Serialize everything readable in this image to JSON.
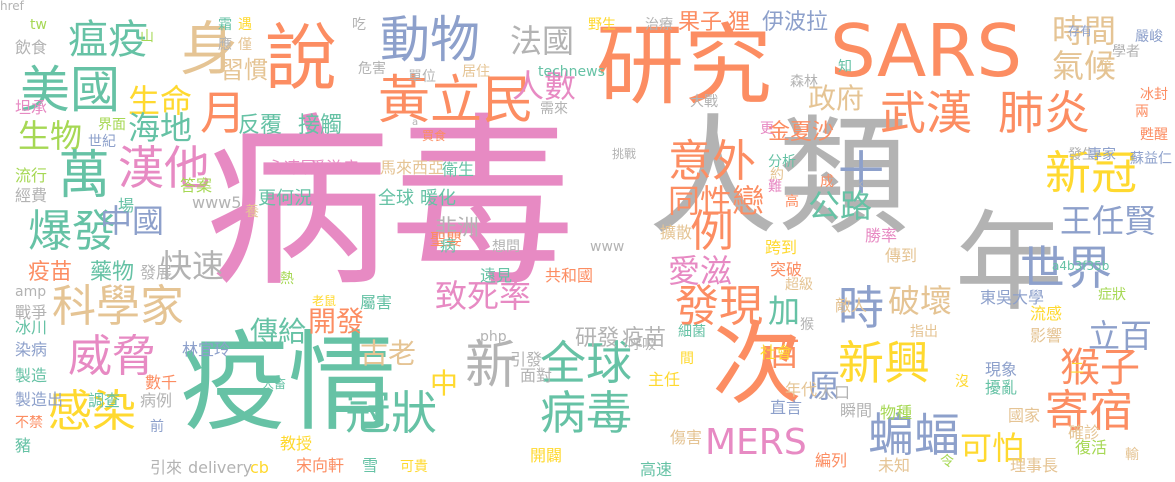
{
  "palette": {
    "pink": "#e78ac3",
    "gray": "#b3b3b3",
    "orange": "#fc8d62",
    "green": "#66c2a5",
    "blue": "#8da0cb",
    "lime": "#a6d854",
    "yellow": "#ffd92f",
    "tan": "#e5c494"
  },
  "words": [
    {
      "t": "病毒",
      "c": "pink"
    },
    {
      "t": "人類",
      "c": "gray"
    },
    {
      "t": "年",
      "c": "gray"
    },
    {
      "t": "疫情",
      "c": "green"
    },
    {
      "t": "研究",
      "c": "orange"
    },
    {
      "t": "SARS",
      "c": "orange"
    },
    {
      "t": "次",
      "c": "orange"
    },
    {
      "t": "說",
      "c": "orange"
    },
    {
      "t": "動物",
      "c": "blue"
    },
    {
      "t": "法國",
      "c": "gray"
    },
    {
      "t": "身",
      "c": "tan"
    },
    {
      "t": "瘟疫",
      "c": "green"
    },
    {
      "t": "美國",
      "c": "green"
    },
    {
      "t": "時間",
      "c": "tan"
    },
    {
      "t": "氣候",
      "c": "tan"
    },
    {
      "t": "黃立民",
      "c": "orange"
    },
    {
      "t": "人數",
      "c": "pink"
    },
    {
      "t": "政府",
      "c": "tan"
    },
    {
      "t": "武漢",
      "c": "orange"
    },
    {
      "t": "肺炎",
      "c": "orange"
    },
    {
      "t": "月",
      "c": "orange"
    },
    {
      "t": "生命",
      "c": "yellow"
    },
    {
      "t": "生物",
      "c": "lime"
    },
    {
      "t": "海地",
      "c": "green"
    },
    {
      "t": "漢他",
      "c": "pink"
    },
    {
      "t": "萬",
      "c": "green"
    },
    {
      "t": "意外",
      "c": "orange"
    },
    {
      "t": "新冠",
      "c": "yellow"
    },
    {
      "t": "爆發",
      "c": "green"
    },
    {
      "t": "中國",
      "c": "blue"
    },
    {
      "t": "科學家",
      "c": "tan"
    },
    {
      "t": "快速",
      "c": "gray"
    },
    {
      "t": "十",
      "c": "blue"
    },
    {
      "t": "公路",
      "c": "green"
    },
    {
      "t": "同性戀",
      "c": "orange"
    },
    {
      "t": "例",
      "c": "orange"
    },
    {
      "t": "世界",
      "c": "blue"
    },
    {
      "t": "王任賢",
      "c": "blue"
    },
    {
      "t": "威脅",
      "c": "pink"
    },
    {
      "t": "全球",
      "c": "green"
    },
    {
      "t": "致死率",
      "c": "pink"
    },
    {
      "t": "發現",
      "c": "orange"
    },
    {
      "t": "時",
      "c": "blue"
    },
    {
      "t": "破壞",
      "c": "tan"
    },
    {
      "t": "立百",
      "c": "blue"
    },
    {
      "t": "猴子",
      "c": "orange"
    },
    {
      "t": "新興",
      "c": "yellow"
    },
    {
      "t": "愛滋",
      "c": "pink"
    },
    {
      "t": "新",
      "c": "gray"
    },
    {
      "t": "冠狀",
      "c": "green"
    },
    {
      "t": "病毒",
      "c": "green"
    },
    {
      "t": "感染",
      "c": "yellow"
    },
    {
      "t": "MERS",
      "c": "pink"
    },
    {
      "t": "寄宿",
      "c": "orange"
    },
    {
      "t": "蝙蝠",
      "c": "blue"
    },
    {
      "t": "可怕",
      "c": "yellow"
    },
    {
      "t": "傳給",
      "c": "green"
    },
    {
      "t": "開發",
      "c": "orange"
    },
    {
      "t": "古老",
      "c": "tan"
    },
    {
      "t": "中",
      "c": "yellow"
    },
    {
      "t": "原",
      "c": "blue"
    },
    {
      "t": "百",
      "c": "orange"
    },
    {
      "t": "加",
      "c": "green"
    },
    {
      "t": "伊波拉",
      "c": "blue"
    },
    {
      "t": "果子",
      "c": "orange"
    },
    {
      "t": "狸",
      "c": "orange"
    },
    {
      "t": "金夏沙",
      "c": "orange"
    },
    {
      "t": "疫苗",
      "c": "orange"
    },
    {
      "t": "藥物",
      "c": "green"
    },
    {
      "t": "習慣",
      "c": "tan"
    },
    {
      "t": "反覆",
      "c": "green"
    },
    {
      "t": "接觸",
      "c": "green"
    },
    {
      "t": "非洲",
      "c": "gray"
    },
    {
      "t": "研發",
      "c": "gray"
    },
    {
      "t": "疫苗",
      "c": "gray"
    },
    {
      "t": "全球",
      "c": "green"
    },
    {
      "t": "暖化",
      "c": "green"
    },
    {
      "t": "愛滋病",
      "c": "pink"
    },
    {
      "t": "馬來西亞",
      "c": "tan"
    },
    {
      "t": "衛生",
      "c": "green"
    },
    {
      "t": "永凍層",
      "c": "pink"
    },
    {
      "t": "更何況",
      "c": "green"
    },
    {
      "t": "聖嬰",
      "c": "orange"
    },
    {
      "t": "共和國",
      "c": "orange"
    },
    {
      "t": "遠見",
      "c": "green"
    },
    {
      "t": "擴散",
      "c": "tan"
    },
    {
      "t": "跨到",
      "c": "yellow"
    },
    {
      "t": "突破",
      "c": "orange"
    },
    {
      "t": "傳到",
      "c": "tan"
    },
    {
      "t": "勝率",
      "c": "pink"
    },
    {
      "t": "敵人",
      "c": "tan"
    },
    {
      "t": "東吳大學",
      "c": "blue"
    },
    {
      "t": "流感",
      "c": "yellow"
    },
    {
      "t": "影響",
      "c": "tan"
    },
    {
      "t": "社會",
      "c": "yellow"
    },
    {
      "t": "現象",
      "c": "blue"
    },
    {
      "t": "擾亂",
      "c": "green"
    },
    {
      "t": "國家",
      "c": "tan"
    },
    {
      "t": "年代",
      "c": "tan"
    },
    {
      "t": "直言",
      "c": "blue"
    },
    {
      "t": "物種",
      "c": "lime"
    },
    {
      "t": "確診",
      "c": "tan"
    },
    {
      "t": "復活",
      "c": "lime"
    },
    {
      "t": "理事長",
      "c": "tan"
    },
    {
      "t": "未知",
      "c": "tan"
    },
    {
      "t": "編列",
      "c": "orange"
    },
    {
      "t": "瞬間",
      "c": "gray"
    },
    {
      "t": "人口",
      "c": "gray"
    },
    {
      "t": "高速",
      "c": "green"
    },
    {
      "t": "開闢",
      "c": "yellow"
    },
    {
      "t": "傷害",
      "c": "tan"
    },
    {
      "t": "主任",
      "c": "yellow"
    },
    {
      "t": "面對",
      "c": "gray"
    },
    {
      "t": "引發",
      "c": "gray"
    },
    {
      "t": "教授",
      "c": "yellow"
    },
    {
      "t": "宋向軒",
      "c": "orange"
    },
    {
      "t": "雪",
      "c": "green"
    },
    {
      "t": "可貴",
      "c": "yellow"
    },
    {
      "t": "引來",
      "c": "gray"
    },
    {
      "t": "delivery",
      "c": "gray"
    },
    {
      "t": "cb",
      "c": "yellow"
    },
    {
      "t": "林宜玲",
      "c": "blue"
    },
    {
      "t": "染病",
      "c": "blue"
    },
    {
      "t": "冰川",
      "c": "green"
    },
    {
      "t": "戰爭",
      "c": "gray"
    },
    {
      "t": "製造",
      "c": "green"
    },
    {
      "t": "製造出",
      "c": "blue"
    },
    {
      "t": "不禁",
      "c": "orange"
    },
    {
      "t": "豬",
      "c": "green"
    },
    {
      "t": "數千",
      "c": "orange"
    },
    {
      "t": "調查",
      "c": "green"
    },
    {
      "t": "病例",
      "c": "gray"
    },
    {
      "t": "前",
      "c": "blue"
    },
    {
      "t": "屬害",
      "c": "green"
    },
    {
      "t": "老鼠",
      "c": "yellow"
    },
    {
      "t": "熱",
      "c": "lime"
    },
    {
      "t": "php",
      "c": "gray"
    },
    {
      "t": "病",
      "c": "green"
    },
    {
      "t": "想問",
      "c": "gray"
    },
    {
      "t": "www",
      "c": "gray"
    },
    {
      "t": "呼吸",
      "c": "gray"
    },
    {
      "t": "細菌",
      "c": "green"
    },
    {
      "t": "間",
      "c": "yellow"
    },
    {
      "t": "二",
      "c": "yellow"
    },
    {
      "t": "流行",
      "c": "lime"
    },
    {
      "t": "經費",
      "c": "gray"
    },
    {
      "t": "坦承",
      "c": "pink"
    },
    {
      "t": "世紀",
      "c": "blue"
    },
    {
      "t": "界面",
      "c": "lime"
    },
    {
      "t": "答案",
      "c": "lime"
    },
    {
      "t": "www5",
      "c": "gray"
    },
    {
      "t": "場",
      "c": "green"
    },
    {
      "t": "養",
      "c": "tan"
    },
    {
      "t": "發展",
      "c": "gray"
    },
    {
      "t": "amp",
      "c": "gray"
    },
    {
      "t": "飲食",
      "c": "gray"
    },
    {
      "t": "tw",
      "c": "lime"
    },
    {
      "t": "山",
      "c": "lime"
    },
    {
      "t": "霜",
      "c": "green"
    },
    {
      "t": "遇",
      "c": "yellow"
    },
    {
      "t": "應",
      "c": "gray"
    },
    {
      "t": "僅",
      "c": "tan"
    },
    {
      "t": "吃",
      "c": "gray"
    },
    {
      "t": "危害",
      "c": "gray"
    },
    {
      "t": "單位",
      "c": "gray"
    },
    {
      "t": "居住",
      "c": "tan"
    },
    {
      "t": "約",
      "c": "tan"
    },
    {
      "t": "technews",
      "c": "green"
    },
    {
      "t": "需來",
      "c": "gray"
    },
    {
      "t": "買食",
      "c": "orange"
    },
    {
      "t": "a",
      "c": "gray"
    },
    {
      "t": "挑戰",
      "c": "gray"
    },
    {
      "t": "分析",
      "c": "green"
    },
    {
      "t": "難",
      "c": "pink"
    },
    {
      "t": "高",
      "c": "orange"
    },
    {
      "t": "成",
      "c": "orange"
    },
    {
      "t": "ck",
      "c": "gray"
    },
    {
      "t": "超級",
      "c": "tan"
    },
    {
      "t": "猴",
      "c": "gray"
    },
    {
      "t": "指出",
      "c": "tan"
    },
    {
      "t": "a4b3f35b",
      "c": "green"
    },
    {
      "t": "症狀",
      "c": "lime"
    },
    {
      "t": "令",
      "c": "lime"
    },
    {
      "t": "沒",
      "c": "yellow"
    },
    {
      "t": "輸",
      "c": "tan"
    },
    {
      "t": "更",
      "c": "pink"
    },
    {
      "t": "發生",
      "c": "gray"
    },
    {
      "t": "專家",
      "c": "blue"
    },
    {
      "t": "蘇益仁",
      "c": "blue"
    },
    {
      "t": "甦醒",
      "c": "orange"
    },
    {
      "t": "兩",
      "c": "orange"
    },
    {
      "t": "冰封",
      "c": "orange"
    },
    {
      "t": "億",
      "c": "tan"
    },
    {
      "t": "嚴峻",
      "c": "blue"
    },
    {
      "t": "存有",
      "c": "blue"
    },
    {
      "t": "學者",
      "c": "gray"
    },
    {
      "t": "知",
      "c": "green"
    },
    {
      "t": "森林",
      "c": "gray"
    },
    {
      "t": "大戰",
      "c": "gray"
    },
    {
      "t": "野生",
      "c": "yellow"
    },
    {
      "t": "治療",
      "c": "gray"
    },
    {
      "t": "人畜",
      "c": "green"
    },
    {
      "t": "href",
      "c": "gray"
    }
  ]
}
